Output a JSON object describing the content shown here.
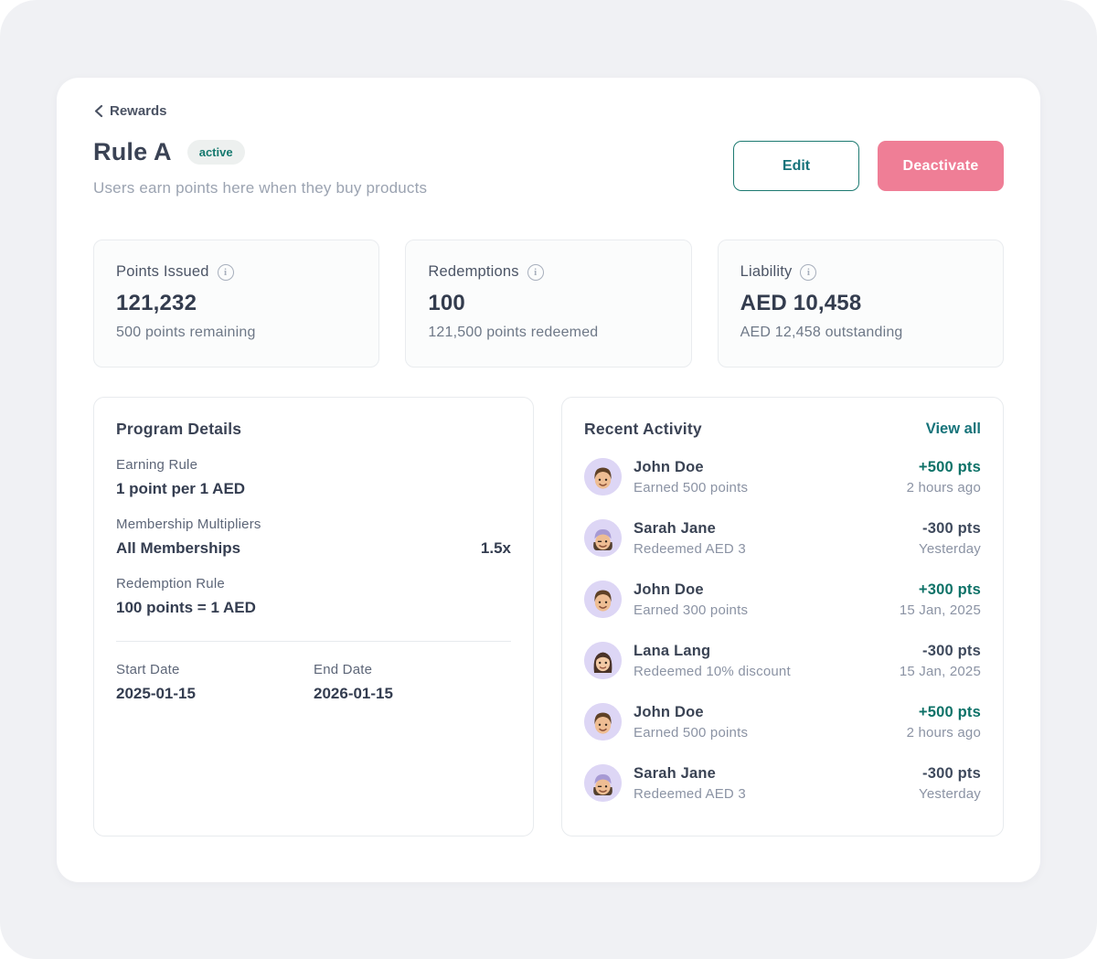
{
  "breadcrumb": {
    "label": "Rewards"
  },
  "header": {
    "title": "Rule A",
    "status_badge": "active",
    "subtitle": "Users earn points here when they buy products",
    "edit_label": "Edit",
    "deactivate_label": "Deactivate"
  },
  "stats": [
    {
      "label": "Points Issued",
      "info_icon": "info-icon",
      "value": "121,232",
      "sub": "500 points remaining"
    },
    {
      "label": "Redemptions",
      "info_icon": "info-icon",
      "value": "100",
      "sub": "121,500 points redeemed"
    },
    {
      "label": "Liability",
      "info_icon": "info-icon",
      "value": "AED 10,458",
      "sub": "AED 12,458 outstanding"
    }
  ],
  "program_details": {
    "title": "Program Details",
    "fields": [
      {
        "label": "Earning Rule",
        "value": "1 point per 1 AED",
        "extra": ""
      },
      {
        "label": "Membership Multipliers",
        "value": "All Memberships",
        "extra": "1.5x"
      },
      {
        "label": "Redemption Rule",
        "value": "100 points = 1 AED",
        "extra": ""
      }
    ],
    "dates": [
      {
        "label": "Start Date",
        "value": "2025-01-15"
      },
      {
        "label": "End Date",
        "value": "2026-01-15"
      }
    ]
  },
  "recent_activity": {
    "title": "Recent Activity",
    "view_all_label": "View all",
    "items": [
      {
        "name": "John Doe",
        "description": "Earned 500 points",
        "points": "+500 pts",
        "points_positive": true,
        "time": "2 hours ago",
        "avatar": "john-memoji"
      },
      {
        "name": "Sarah Jane",
        "description": "Redeemed AED 3",
        "points": "-300 pts",
        "points_positive": false,
        "time": "Yesterday",
        "avatar": "sarah-memoji"
      },
      {
        "name": "John Doe",
        "description": "Earned 300 points",
        "points": "+300 pts",
        "points_positive": true,
        "time": "15 Jan, 2025",
        "avatar": "john-memoji"
      },
      {
        "name": "Lana Lang",
        "description": "Redeemed 10% discount",
        "points": "-300 pts",
        "points_positive": false,
        "time": "15 Jan, 2025",
        "avatar": "lana-memoji"
      },
      {
        "name": "John Doe",
        "description": "Earned 500 points",
        "points": "+500 pts",
        "points_positive": true,
        "time": "2 hours ago",
        "avatar": "john-memoji"
      },
      {
        "name": "Sarah Jane",
        "description": "Redeemed AED 3",
        "points": "-300 pts",
        "points_positive": false,
        "time": "Yesterday",
        "avatar": "sarah-memoji"
      }
    ]
  },
  "colors": {
    "accent_teal": "#16737a",
    "points_positive": "#0e7268",
    "points_negative": "#3f4a5d",
    "danger_pink": "#ef7e96",
    "badge_bg": "#edf0ef",
    "avatar_bg": "#ddd6f5",
    "page_bg": "#f0f1f4"
  }
}
